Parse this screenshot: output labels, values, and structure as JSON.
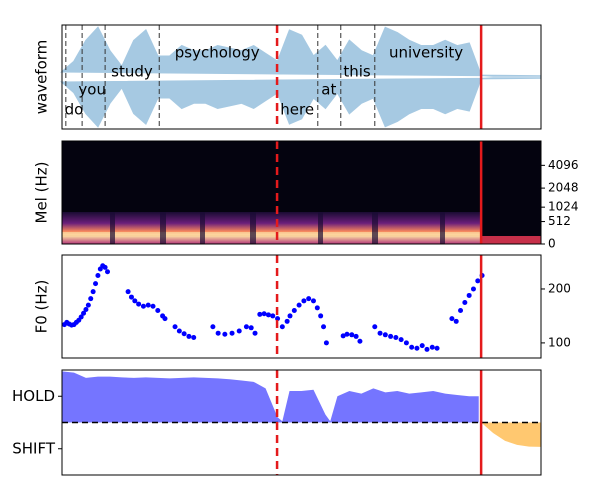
{
  "chart_data": [
    {
      "type": "waveform",
      "ylabel": "waveform",
      "color": "#a6c9e2",
      "xlim": [
        0,
        100
      ],
      "ylim": [
        -1,
        1
      ],
      "x": [
        0,
        2.5,
        5,
        7.5,
        10,
        12.5,
        15,
        17.5,
        20,
        22.5,
        25,
        27.5,
        30,
        32.5,
        35,
        37.5,
        40,
        42.5,
        45,
        47.5,
        50,
        52.5,
        55,
        57.5,
        60,
        62.5,
        65,
        67.5,
        70,
        72.5,
        75,
        77.5,
        80,
        82.5,
        85,
        87.5,
        90,
        92.5,
        95,
        97.5,
        100
      ],
      "values": [
        0.1,
        0.3,
        0.7,
        0.95,
        0.5,
        0.2,
        0.7,
        0.9,
        0.4,
        0.4,
        0.6,
        0.5,
        0.5,
        0.6,
        0.55,
        0.5,
        0.6,
        0.45,
        0.3,
        0.9,
        0.8,
        0.4,
        0.6,
        0.3,
        0.7,
        0.5,
        0.4,
        0.95,
        0.85,
        0.7,
        0.6,
        0.6,
        0.7,
        0.6,
        0.65,
        0.03,
        0.02,
        0.02,
        0.02,
        0.02,
        0.02
      ],
      "words": [
        {
          "text": "do",
          "x": 2.5,
          "y": -0.63
        },
        {
          "text": "you",
          "x": 6.3,
          "y": -0.25
        },
        {
          "text": "study",
          "x": 14.6,
          "y": 0.1
        },
        {
          "text": "psychology",
          "x": 32.4,
          "y": 0.46
        },
        {
          "text": "here",
          "x": 49.1,
          "y": -0.63
        },
        {
          "text": "at",
          "x": 55.7,
          "y": -0.25
        },
        {
          "text": "this",
          "x": 61.6,
          "y": 0.1
        },
        {
          "text": "university",
          "x": 76,
          "y": 0.46
        }
      ],
      "boundaries": [
        0.8,
        4.2,
        9.0,
        20.3,
        53.4,
        58.2,
        65.3
      ],
      "vlines": [
        {
          "x": 44.9,
          "style": "dashed",
          "color": "#e41a1c"
        },
        {
          "x": 87.5,
          "style": "solid",
          "color": "#e41a1c"
        }
      ]
    },
    {
      "type": "heatmap",
      "ylabel": "Mel (Hz)",
      "yscale": "mel",
      "xlim": [
        0,
        100
      ],
      "ylim": [
        0,
        8000
      ],
      "yticks": [
        0,
        512,
        1024,
        2048,
        4096
      ],
      "vlines": [
        {
          "x": 44.9,
          "style": "dashed",
          "color": "#e41a1c"
        },
        {
          "x": 87.5,
          "style": "solid",
          "color": "#e41a1c"
        }
      ]
    },
    {
      "type": "scatter",
      "ylabel": "F0 (Hz)",
      "color": "#0000ff",
      "xlim": [
        0,
        100
      ],
      "ylim": [
        72,
        263
      ],
      "yticks": [
        100,
        200
      ],
      "x": [
        0.5,
        1,
        1.5,
        2,
        2.5,
        3,
        3.5,
        4,
        4.5,
        5,
        5.5,
        6,
        6.5,
        7,
        7.5,
        8,
        8.5,
        9,
        9.5,
        13.8,
        14.5,
        15.2,
        16,
        17,
        18,
        19,
        20,
        21,
        21.5,
        23.6,
        24.5,
        25.5,
        26.5,
        27.5,
        31.5,
        32.6,
        34,
        35.5,
        37,
        38.5,
        39.5,
        40.3,
        41.3,
        42.2,
        43.1,
        44,
        45,
        46,
        47,
        47.6,
        48.5,
        49.5,
        50.5,
        51.5,
        52.5,
        53.3,
        54,
        54.6,
        55.2,
        58.7,
        59.5,
        60.5,
        61.4,
        62.2,
        65.3,
        66.4,
        67.5,
        68.6,
        69.7,
        70.8,
        71.9,
        73,
        74.1,
        75.2,
        76.2,
        77.3,
        78.3,
        81.4,
        82.3,
        83.2,
        84.1,
        85,
        85.9,
        86.8,
        87.7
      ],
      "values": [
        134,
        138,
        135,
        133,
        134,
        138,
        142,
        148,
        155,
        162,
        170,
        182,
        195,
        210,
        225,
        237,
        243,
        240,
        232,
        195,
        185,
        178,
        172,
        168,
        170,
        168,
        160,
        150,
        145,
        130,
        122,
        117,
        112,
        110,
        130,
        118,
        116,
        118,
        122,
        130,
        128,
        118,
        153,
        154,
        152,
        150,
        145,
        130,
        140,
        150,
        160,
        170,
        178,
        182,
        178,
        165,
        150,
        130,
        100,
        113,
        116,
        115,
        112,
        103,
        130,
        118,
        115,
        112,
        110,
        106,
        100,
        92,
        90,
        95,
        88,
        92,
        90,
        145,
        140,
        160,
        175,
        188,
        200,
        215,
        225
      ],
      "vlines": [
        {
          "x": 44.9,
          "style": "dashed",
          "color": "#e41a1c"
        },
        {
          "x": 87.5,
          "style": "solid",
          "color": "#e41a1c"
        }
      ]
    },
    {
      "type": "area",
      "xlim": [
        0,
        100
      ],
      "ylim": [
        -2,
        2
      ],
      "yticks": [
        {
          "value": 1,
          "label": "HOLD"
        },
        {
          "value": -1,
          "label": "SHIFT"
        }
      ],
      "series": [
        {
          "color": "#6666ff",
          "x": [
            0,
            2.5,
            5,
            7.5,
            10,
            12.5,
            15,
            17.5,
            20,
            22.5,
            25,
            27.5,
            30,
            32.5,
            35,
            37.5,
            40,
            42.5,
            45,
            46,
            47.5,
            50,
            52.5,
            55,
            56,
            57.5,
            60,
            62.5,
            65,
            67.5,
            70,
            72.5,
            75,
            77.5,
            80,
            82.5,
            85,
            87
          ],
          "values": [
            1.95,
            1.9,
            1.7,
            1.75,
            1.75,
            1.72,
            1.7,
            1.72,
            1.7,
            1.68,
            1.7,
            1.72,
            1.7,
            1.68,
            1.65,
            1.6,
            1.55,
            1.3,
            0.2,
            0.05,
            1.2,
            1.2,
            1.25,
            0.3,
            0.05,
            1.0,
            1.2,
            1.1,
            1.3,
            1.15,
            1.2,
            1.1,
            1.15,
            1.2,
            1.1,
            1.05,
            1.0,
            1.0
          ]
        },
        {
          "color": "#ffc261",
          "x": [
            87.5,
            90,
            92.5,
            95,
            97.5,
            100
          ],
          "values": [
            0,
            -0.4,
            -0.7,
            -0.85,
            -0.92,
            -0.93
          ]
        }
      ],
      "hlines": [
        {
          "y": 0,
          "style": "dashed",
          "color": "#000000"
        }
      ],
      "vlines": [
        {
          "x": 44.9,
          "style": "dashed",
          "color": "#e41a1c"
        },
        {
          "x": 87.5,
          "style": "solid",
          "color": "#e41a1c"
        }
      ]
    }
  ]
}
